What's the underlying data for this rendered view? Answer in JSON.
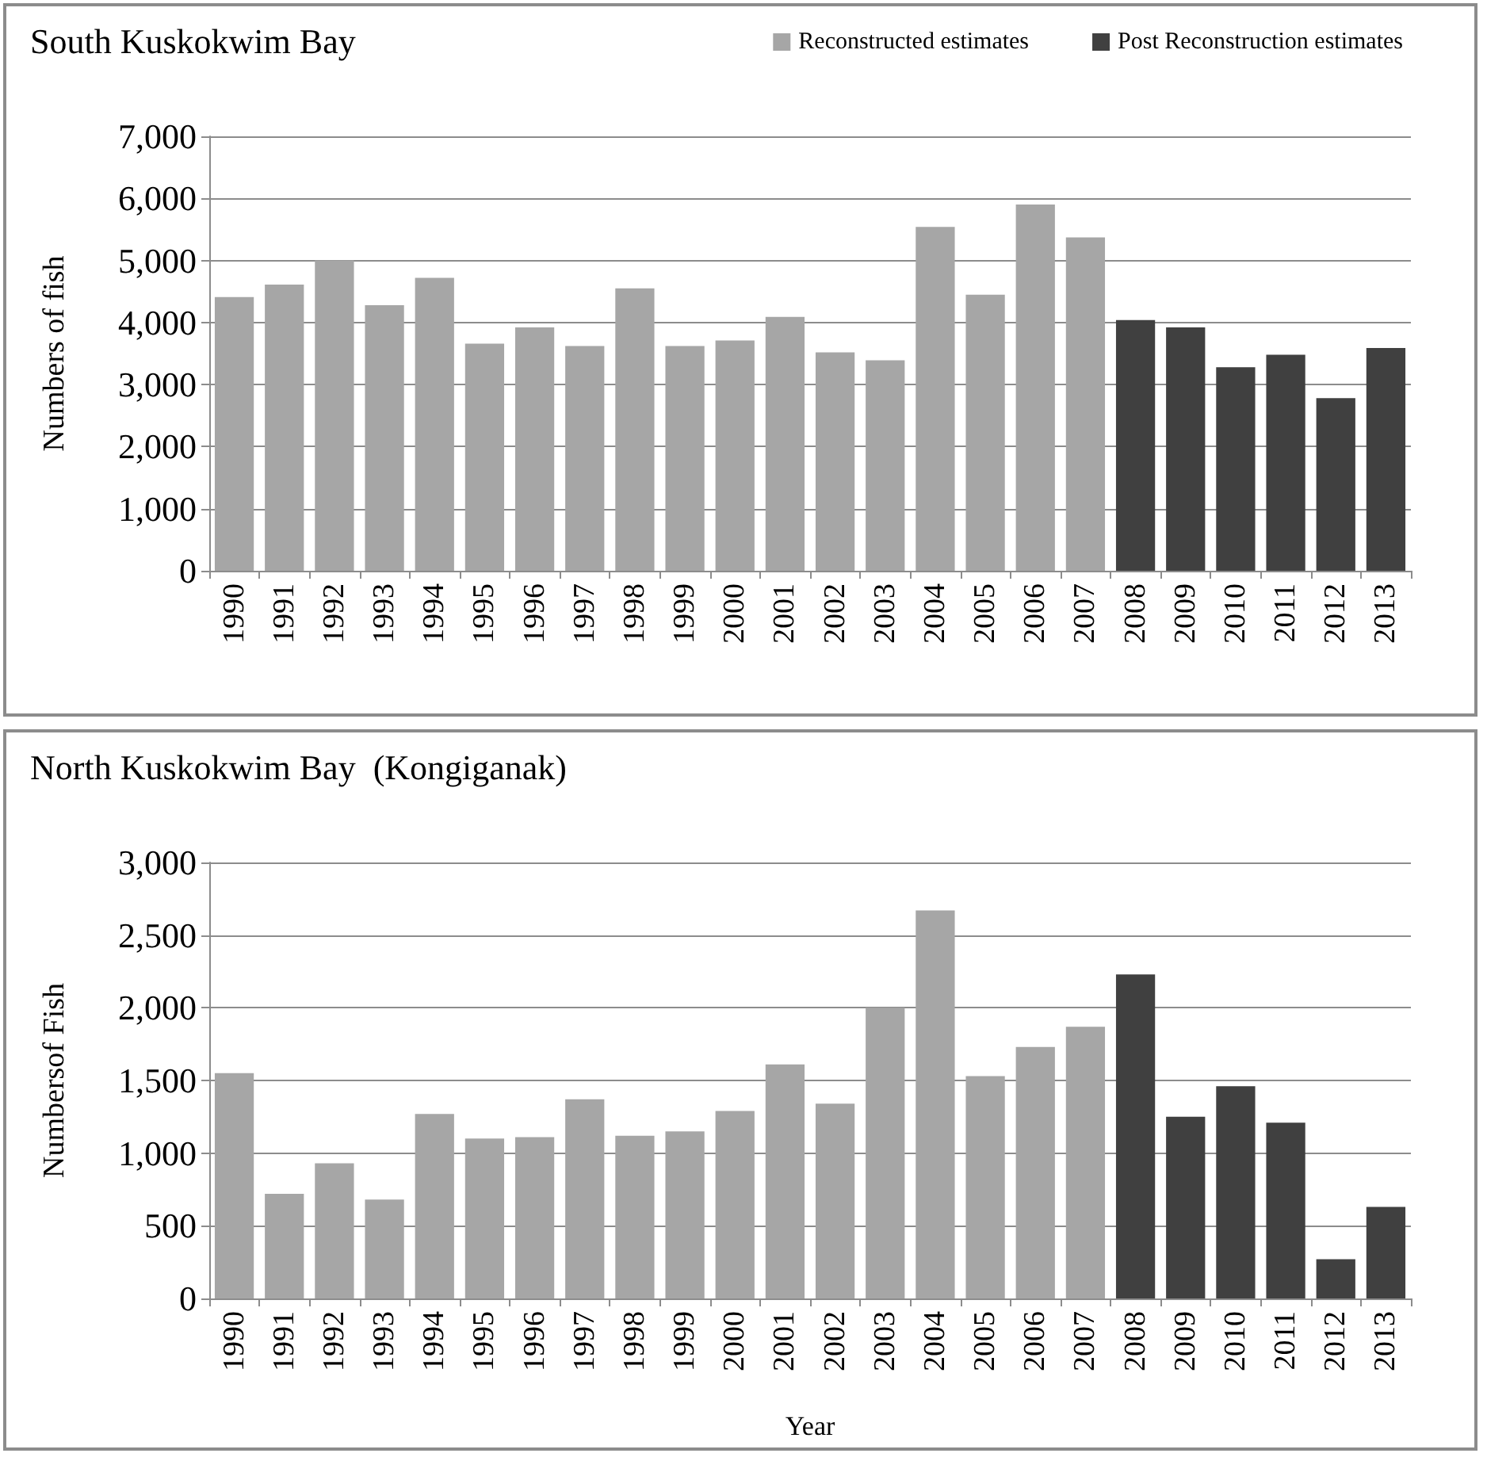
{
  "chart_data": [
    {
      "type": "bar",
      "title": "South Kuskokwim Bay",
      "ylabel": "Numbers of fish",
      "categories": [
        "1990",
        "1991",
        "1992",
        "1993",
        "1994",
        "1995",
        "1996",
        "1997",
        "1998",
        "1999",
        "2000",
        "2001",
        "2002",
        "2003",
        "2004",
        "2005",
        "2006",
        "2007",
        "2008",
        "2009",
        "2010",
        "2011",
        "2012",
        "2013"
      ],
      "series": [
        {
          "name": "Reconstructed estimates",
          "color": "#a6a6a6",
          "values": [
            4410,
            4610,
            5000,
            4280,
            4720,
            3660,
            3920,
            3620,
            4550,
            3620,
            3710,
            4090,
            3520,
            3390,
            5540,
            4450,
            5900,
            5370,
            null,
            null,
            null,
            null,
            null,
            null
          ]
        },
        {
          "name": "Post Reconstruction estimates",
          "color": "#404040",
          "values": [
            null,
            null,
            null,
            null,
            null,
            null,
            null,
            null,
            null,
            null,
            null,
            null,
            null,
            null,
            null,
            null,
            null,
            null,
            4040,
            3920,
            3280,
            3480,
            2780,
            3590
          ]
        }
      ],
      "ylim": [
        0,
        7000
      ],
      "yticks": [
        {
          "value": 0,
          "label": "0"
        },
        {
          "value": 1000,
          "label": "1,000"
        },
        {
          "value": 2000,
          "label": "2,000"
        },
        {
          "value": 3000,
          "label": "3,000"
        },
        {
          "value": 4000,
          "label": "4,000"
        },
        {
          "value": 5000,
          "label": "5,000"
        },
        {
          "value": 6000,
          "label": "6,000"
        },
        {
          "value": 7000,
          "label": "7,000"
        }
      ],
      "grid": "y",
      "legend": "top right"
    },
    {
      "type": "bar",
      "title": "North Kuskokwim Bay  (Kongiganak)",
      "xlabel": "Year",
      "ylabel": "Numbersof Fish",
      "categories": [
        "1990",
        "1991",
        "1992",
        "1993",
        "1994",
        "1995",
        "1996",
        "1997",
        "1998",
        "1999",
        "2000",
        "2001",
        "2002",
        "2003",
        "2004",
        "2005",
        "2006",
        "2007",
        "2008",
        "2009",
        "2010",
        "2011",
        "2012",
        "2013"
      ],
      "series": [
        {
          "color": "#a6a6a6",
          "values": [
            1550,
            720,
            930,
            680,
            1270,
            1100,
            1110,
            1370,
            1120,
            1150,
            1290,
            1610,
            1340,
            2000,
            2670,
            1530,
            1730,
            1870,
            null,
            null,
            null,
            null,
            null,
            null
          ]
        },
        {
          "color": "#404040",
          "values": [
            null,
            null,
            null,
            null,
            null,
            null,
            null,
            null,
            null,
            null,
            null,
            null,
            null,
            null,
            null,
            null,
            null,
            null,
            2230,
            1250,
            1460,
            1210,
            270,
            630
          ]
        }
      ],
      "ylim": [
        0,
        3000
      ],
      "yticks": [
        {
          "value": 0,
          "label": "0"
        },
        {
          "value": 500,
          "label": "500"
        },
        {
          "value": 1000,
          "label": "1,000"
        },
        {
          "value": 1500,
          "label": "1,500"
        },
        {
          "value": 2000,
          "label": "2,000"
        },
        {
          "value": 2500,
          "label": "2,500"
        },
        {
          "value": 3000,
          "label": "3,000"
        }
      ],
      "grid": "y",
      "legend": false
    }
  ]
}
